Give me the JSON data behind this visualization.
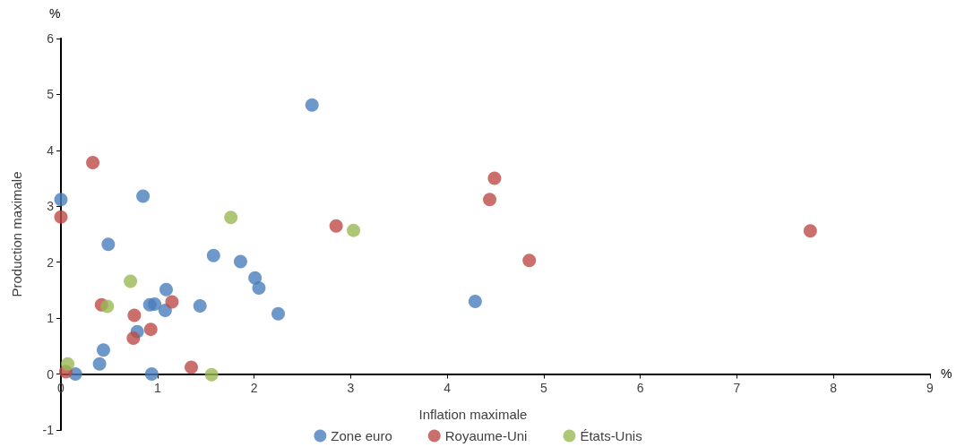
{
  "chart_data": {
    "type": "scatter",
    "xlabel": "Inflation maximale",
    "ylabel": "Production maximale",
    "annotations": [
      "%",
      "%"
    ],
    "xlim": [
      0,
      9
    ],
    "xticks": [
      0,
      1,
      2,
      3,
      4,
      5,
      6,
      7,
      8,
      9
    ],
    "ylim": [
      -1,
      6
    ],
    "yticks": [
      -1,
      0,
      1,
      2,
      3,
      4,
      5,
      6
    ],
    "grid": false,
    "legend": "bottom",
    "marker": "circle",
    "series": [
      {
        "name": "Zone euro",
        "color": "#4a7ebb",
        "x": [
          0,
          0.85,
          0.49,
          2.6,
          1.58,
          1.86,
          2.01,
          2.05,
          2.25,
          4.29,
          1.09,
          0.92,
          0.97,
          1.08,
          1.44,
          0.79,
          0.44,
          0.4,
          0.94,
          0.15
        ],
        "values": [
          3.12,
          3.18,
          2.32,
          4.81,
          2.12,
          2.01,
          1.72,
          1.54,
          1.08,
          1.3,
          1.51,
          1.24,
          1.25,
          1.14,
          1.22,
          0.76,
          0.43,
          0.18,
          0,
          0
        ]
      },
      {
        "name": "Royaume-Uni",
        "color": "#be4b48",
        "x": [
          0.33,
          0,
          2.85,
          4.49,
          4.44,
          4.85,
          7.76,
          0.42,
          1.15,
          0.76,
          0.75,
          0.93,
          1.35,
          0.05
        ],
        "values": [
          3.78,
          2.81,
          2.65,
          3.5,
          3.12,
          2.03,
          2.56,
          1.24,
          1.29,
          1.05,
          0.64,
          0.8,
          0.12,
          0.04
        ]
      },
      {
        "name": "États-Unis",
        "color": "#98b954",
        "x": [
          1.76,
          3.03,
          0.72,
          0.48,
          0.07,
          1.56
        ],
        "values": [
          2.8,
          2.57,
          1.66,
          1.21,
          0.18,
          -0.01
        ]
      }
    ]
  }
}
